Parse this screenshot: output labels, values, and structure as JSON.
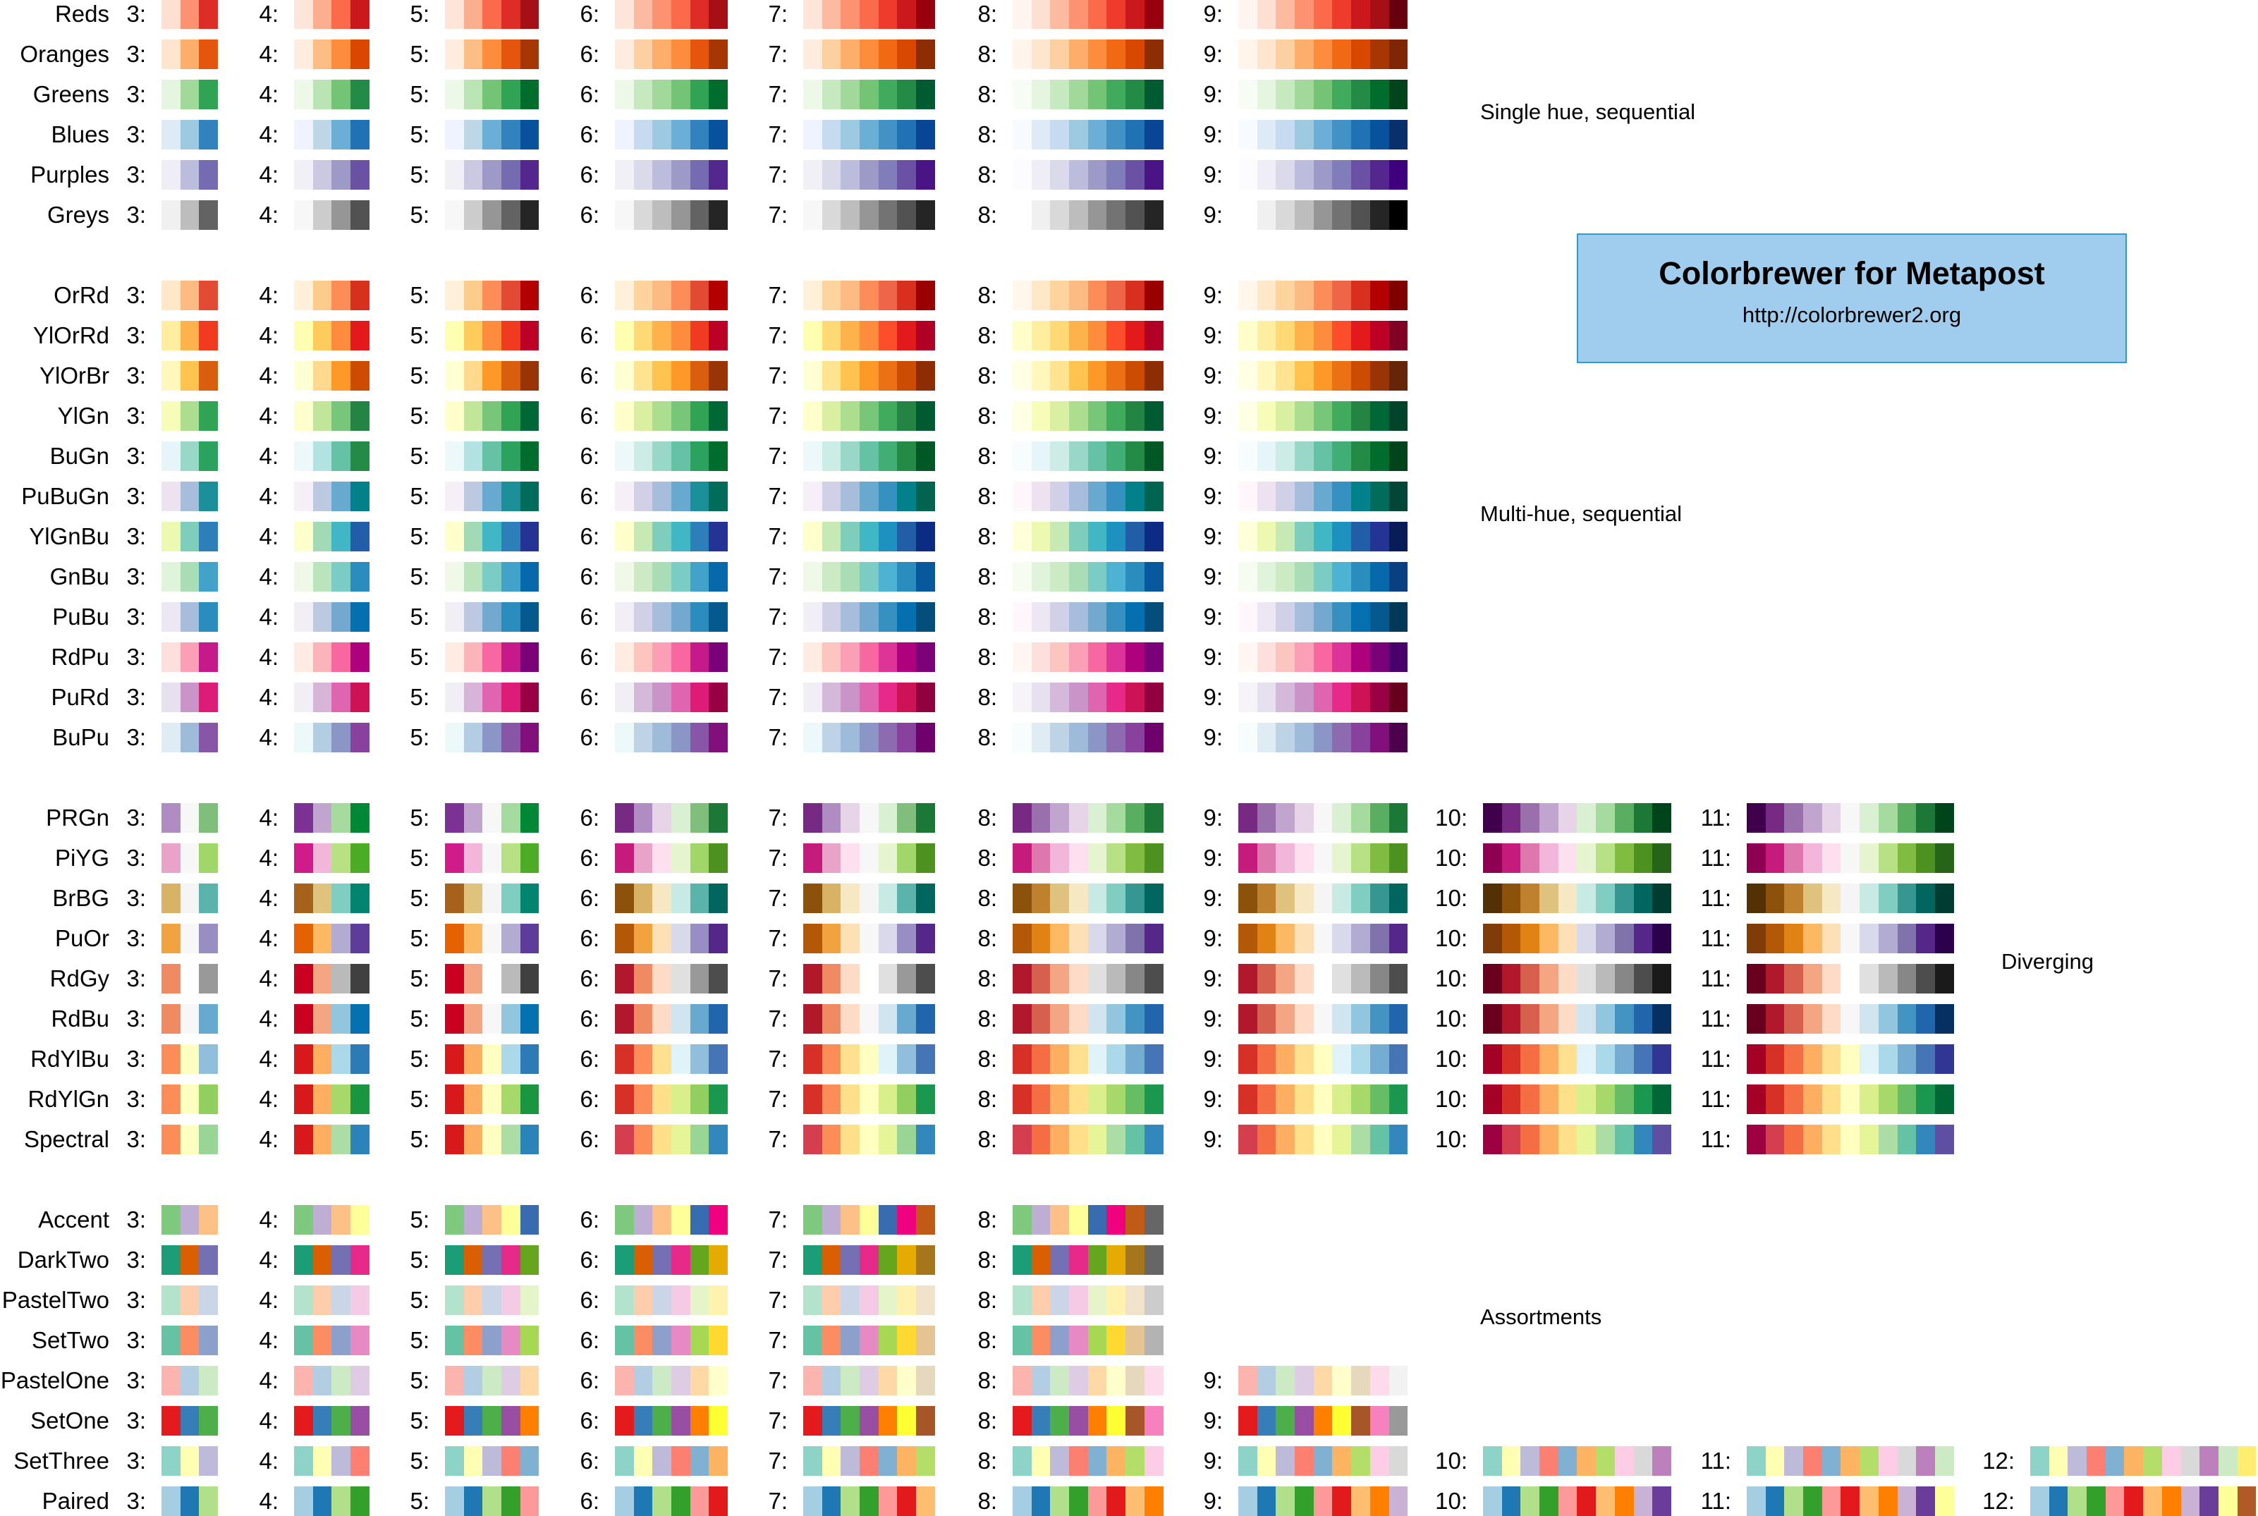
{
  "title_box": {
    "title": "Colorbrewer for Metapost",
    "url": "http://colorbrewer2.org",
    "fill": "#a0cdee",
    "border": "#2a9ad8"
  },
  "sections": {
    "single": "Single hue, sequential",
    "multi": "Multi-hue, sequential",
    "diverging": "Diverging",
    "assortments": "Assortments"
  },
  "groups": [
    {
      "id": "single",
      "palettes": [
        {
          "name": "Reds",
          "classes": {
            "3": "fee0d2 fc9272 de2d26",
            "4": "fee5d9 fcae91 fb6a4a cb181d",
            "5": "fee5d9 fcae91 fb6a4a de2d26 a50f15",
            "6": "fee5d9 fcbba1 fc9272 fb6a4a de2d26 a50f15",
            "7": "fee5d9 fcbba1 fc9272 fb6a4a ef3b2c cb181d 99000d",
            "8": "fff5f0 fee0d2 fcbba1 fc9272 fb6a4a ef3b2c cb181d 99000d",
            "9": "fff5f0 fee0d2 fcbba1 fc9272 fb6a4a ef3b2c cb181d a50f15 67000d"
          }
        },
        {
          "name": "Oranges",
          "classes": {
            "3": "fee6ce fdae6b e6550d",
            "4": "feedde fdbe85 fd8d3c d94701",
            "5": "feedde fdbe85 fd8d3c e6550d a63603",
            "6": "feedde fdd0a2 fdae6b fd8d3c e6550d a63603",
            "7": "feedde fdd0a2 fdae6b fd8d3c f16913 d94801 8c2d04",
            "8": "fff5eb fee6ce fdd0a2 fdae6b fd8d3c f16913 d94801 8c2d04",
            "9": "fff5eb fee6ce fdd0a2 fdae6b fd8d3c f16913 d94801 a63603 7f2704"
          }
        },
        {
          "name": "Greens",
          "classes": {
            "3": "e5f5e0 a1d99b 31a354",
            "4": "edf8e9 bae4b3 74c476 238b45",
            "5": "edf8e9 bae4b3 74c476 31a354 006d2c",
            "6": "edf8e9 c7e9c0 a1d99b 74c476 31a354 006d2c",
            "7": "edf8e9 c7e9c0 a1d99b 74c476 41ab5d 238b45 005a32",
            "8": "f7fcf5 e5f5e0 c7e9c0 a1d99b 74c476 41ab5d 238b45 005a32",
            "9": "f7fcf5 e5f5e0 c7e9c0 a1d99b 74c476 41ab5d 238b45 006d2c 00441b"
          }
        },
        {
          "name": "Blues",
          "classes": {
            "3": "deebf7 9ecae1 3182bd",
            "4": "eff3ff bdd7e7 6baed6 2171b5",
            "5": "eff3ff bdd7e7 6baed6 3182bd 08519c",
            "6": "eff3ff c6dbef 9ecae1 6baed6 3182bd 08519c",
            "7": "eff3ff c6dbef 9ecae1 6baed6 4292c6 2171b5 084594",
            "8": "f7fbff deebf7 c6dbef 9ecae1 6baed6 4292c6 2171b5 084594",
            "9": "f7fbff deebf7 c6dbef 9ecae1 6baed6 4292c6 2171b5 08519c 08306b"
          }
        },
        {
          "name": "Purples",
          "classes": {
            "3": "efedf5 bcbddc 756bb1",
            "4": "f2f0f7 cbc9e2 9e9ac8 6a51a3",
            "5": "f2f0f7 cbc9e2 9e9ac8 756bb1 54278f",
            "6": "f2f0f7 dadaeb bcbddc 9e9ac8 756bb1 54278f",
            "7": "f2f0f7 dadaeb bcbddc 9e9ac8 807dba 6a51a3 4a1486",
            "8": "fcfbfd efedf5 dadaeb bcbddc 9e9ac8 807dba 6a51a3 4a1486",
            "9": "fcfbfd efedf5 dadaeb bcbddc 9e9ac8 807dba 6a51a3 54278f 3f007d"
          }
        },
        {
          "name": "Greys",
          "classes": {
            "3": "f0f0f0 bdbdbd 636363",
            "4": "f7f7f7 cccccc 969696 525252",
            "5": "f7f7f7 cccccc 969696 636363 252525",
            "6": "f7f7f7 d9d9d9 bdbdbd 969696 636363 252525",
            "7": "f7f7f7 d9d9d9 bdbdbd 969696 737373 525252 252525",
            "8": "ffffff f0f0f0 d9d9d9 bdbdbd 969696 737373 525252 252525",
            "9": "ffffff f0f0f0 d9d9d9 bdbdbd 969696 737373 525252 252525 000000"
          }
        }
      ]
    },
    {
      "id": "multi",
      "palettes": [
        {
          "name": "OrRd",
          "classes": {
            "3": "fee8c8 fdbb84 e34a33",
            "4": "fef0d9 fdcc8a fc8d59 d7301f",
            "5": "fef0d9 fdcc8a fc8d59 e34a33 b30000",
            "6": "fef0d9 fdd49e fdbb84 fc8d59 e34a33 b30000",
            "7": "fef0d9 fdd49e fdbb84 fc8d59 ef6548 d7301f 990000",
            "8": "fff7ec fee8c8 fdd49e fdbb84 fc8d59 ef6548 d7301f 990000",
            "9": "fff7ec fee8c8 fdd49e fdbb84 fc8d59 ef6548 d7301f b30000 7f0000"
          }
        },
        {
          "name": "YlOrRd",
          "classes": {
            "3": "ffeda0 feb24c f03b20",
            "4": "ffffb2 fecc5c fd8d3c e31a1c",
            "5": "ffffb2 fecc5c fd8d3c f03b20 bd0026",
            "6": "ffffb2 fed976 feb24c fd8d3c f03b20 bd0026",
            "7": "ffffb2 fed976 feb24c fd8d3c fc4e2a e31a1c b10026",
            "8": "ffffcc ffeda0 fed976 feb24c fd8d3c fc4e2a e31a1c b10026",
            "9": "ffffcc ffeda0 fed976 feb24c fd8d3c fc4e2a e31a1c bd0026 800026"
          }
        },
        {
          "name": "YlOrBr",
          "classes": {
            "3": "fff7bc fec44f d95f0e",
            "4": "ffffd4 fed98e fe9929 cc4c02",
            "5": "ffffd4 fed98e fe9929 d95f0e 993404",
            "6": "ffffd4 fee391 fec44f fe9929 d95f0e 993404",
            "7": "ffffd4 fee391 fec44f fe9929 ec7014 cc4c02 8c2d04",
            "8": "ffffe5 fff7bc fee391 fec44f fe9929 ec7014 cc4c02 8c2d04",
            "9": "ffffe5 fff7bc fee391 fec44f fe9929 ec7014 cc4c02 993404 662506"
          }
        },
        {
          "name": "YlGn",
          "classes": {
            "3": "f7fcb9 addd8e 31a354",
            "4": "ffffcc c2e699 78c679 238443",
            "5": "ffffcc c2e699 78c679 31a354 006837",
            "6": "ffffcc d9f0a3 addd8e 78c679 31a354 006837",
            "7": "ffffcc d9f0a3 addd8e 78c679 41ab5d 238443 005a32",
            "8": "ffffe5 f7fcb9 d9f0a3 addd8e 78c679 41ab5d 238443 005a32",
            "9": "ffffe5 f7fcb9 d9f0a3 addd8e 78c679 41ab5d 238443 006837 004529"
          }
        },
        {
          "name": "BuGn",
          "classes": {
            "3": "e5f5f9 99d8c9 2ca25f",
            "4": "edf8fb b2e2e2 66c2a4 238b45",
            "5": "edf8fb b2e2e2 66c2a4 2ca25f 006d2c",
            "6": "edf8fb ccece6 99d8c9 66c2a4 2ca25f 006d2c",
            "7": "edf8fb ccece6 99d8c9 66c2a4 41ae76 238b45 005824",
            "8": "f7fcfd e5f5f9 ccece6 99d8c9 66c2a4 41ae76 238b45 005824",
            "9": "f7fcfd e5f5f9 ccece6 99d8c9 66c2a4 41ae76 238b45 006d2c 00441b"
          }
        },
        {
          "name": "PuBuGn",
          "classes": {
            "3": "ece2f0 a6bddb 1c9099",
            "4": "f6eff7 bdc9e1 67a9cf 02818a",
            "5": "f6eff7 bdc9e1 67a9cf 1c9099 016c59",
            "6": "f6eff7 d0d1e6 a6bddb 67a9cf 1c9099 016c59",
            "7": "f6eff7 d0d1e6 a6bddb 67a9cf 3690c0 02818a 016450",
            "8": "fff7fb ece2f0 d0d1e6 a6bddb 67a9cf 3690c0 02818a 016450",
            "9": "fff7fb ece2f0 d0d1e6 a6bddb 67a9cf 3690c0 02818a 016c59 014636"
          }
        },
        {
          "name": "YlGnBu",
          "classes": {
            "3": "edf8b1 7fcdbb 2c7fb8",
            "4": "ffffcc a1dab4 41b6c4 225ea8",
            "5": "ffffcc a1dab4 41b6c4 2c7fb8 253494",
            "6": "ffffcc c7e9b4 7fcdbb 41b6c4 2c7fb8 253494",
            "7": "ffffcc c7e9b4 7fcdbb 41b6c4 1d91c0 225ea8 0c2c84",
            "8": "ffffd9 edf8b1 c7e9b4 7fcdbb 41b6c4 1d91c0 225ea8 0c2c84",
            "9": "ffffd9 edf8b1 c7e9b4 7fcdbb 41b6c4 1d91c0 225ea8 253494 081d58"
          }
        },
        {
          "name": "GnBu",
          "classes": {
            "3": "e0f3db a8ddb5 43a2ca",
            "4": "f0f9e8 bae4bc 7bccc4 2b8cbe",
            "5": "f0f9e8 bae4bc 7bccc4 43a2ca 0868ac",
            "6": "f0f9e8 ccebc5 a8ddb5 7bccc4 43a2ca 0868ac",
            "7": "f0f9e8 ccebc5 a8ddb5 7bccc4 4eb3d3 2b8cbe 08589e",
            "8": "f7fcf0 e0f3db ccebc5 a8ddb5 7bccc4 4eb3d3 2b8cbe 08589e",
            "9": "f7fcf0 e0f3db ccebc5 a8ddb5 7bccc4 4eb3d3 2b8cbe 0868ac 084081"
          }
        },
        {
          "name": "PuBu",
          "classes": {
            "3": "ece7f2 a6bddb 2b8cbe",
            "4": "f1eef6 bdc9e1 74a9cf 0570b0",
            "5": "f1eef6 bdc9e1 74a9cf 2b8cbe 045a8d",
            "6": "f1eef6 d0d1e6 a6bddb 74a9cf 2b8cbe 045a8d",
            "7": "f1eef6 d0d1e6 a6bddb 74a9cf 3690c0 0570b0 034e7b",
            "8": "fff7fb ece7f2 d0d1e6 a6bddb 74a9cf 3690c0 0570b0 034e7b",
            "9": "fff7fb ece7f2 d0d1e6 a6bddb 74a9cf 3690c0 0570b0 045a8d 023858"
          }
        },
        {
          "name": "RdPu",
          "classes": {
            "3": "fde0dd fa9fb5 c51b8a",
            "4": "feebe2 fbb4b9 f768a1 ae017e",
            "5": "feebe2 fbb4b9 f768a1 c51b8a 7a0177",
            "6": "feebe2 fcc5c0 fa9fb5 f768a1 c51b8a 7a0177",
            "7": "feebe2 fcc5c0 fa9fb5 f768a1 dd3497 ae017e 7a0177",
            "8": "fff7f3 fde0dd fcc5c0 fa9fb5 f768a1 dd3497 ae017e 7a0177",
            "9": "fff7f3 fde0dd fcc5c0 fa9fb5 f768a1 dd3497 ae017e 7a0177 49006a"
          }
        },
        {
          "name": "PuRd",
          "classes": {
            "3": "e7e1ef c994c7 dd1c77",
            "4": "f1eef6 d7b5d8 df65b0 ce1256",
            "5": "f1eef6 d7b5d8 df65b0 dd1c77 980043",
            "6": "f1eef6 d4b9da c994c7 df65b0 dd1c77 980043",
            "7": "f1eef6 d4b9da c994c7 df65b0 e7298a ce1256 91003f",
            "8": "f7f4f9 e7e1ef d4b9da c994c7 df65b0 e7298a ce1256 91003f",
            "9": "f7f4f9 e7e1ef d4b9da c994c7 df65b0 e7298a ce1256 980043 67001f"
          }
        },
        {
          "name": "BuPu",
          "classes": {
            "3": "e0ecf4 9ebcda 8856a7",
            "4": "edf8fb b3cde3 8c96c6 88419d",
            "5": "edf8fb b3cde3 8c96c6 8856a7 810f7c",
            "6": "edf8fb bfd3e6 9ebcda 8c96c6 8856a7 810f7c",
            "7": "edf8fb bfd3e6 9ebcda 8c96c6 8c6bb1 88419d 6e016b",
            "8": "f7fcfd e0ecf4 bfd3e6 9ebcda 8c96c6 8c6bb1 88419d 6e016b",
            "9": "f7fcfd e0ecf4 bfd3e6 9ebcda 8c96c6 8c6bb1 88419d 810f7c 4d004b"
          }
        }
      ]
    },
    {
      "id": "diverging",
      "palettes": [
        {
          "name": "PRGn",
          "classes": {
            "3": "af8dc3 f7f7f7 7fbf7b",
            "4": "7b3294 c2a5cf a6dba0 008837",
            "5": "7b3294 c2a5cf f7f7f7 a6dba0 008837",
            "6": "762a83 af8dc3 e7d4e8 d9f0d3 7fbf7b 1b7837",
            "7": "762a83 af8dc3 e7d4e8 f7f7f7 d9f0d3 7fbf7b 1b7837",
            "8": "762a83 9970ab c2a5cf e7d4e8 d9f0d3 a6dba0 5aae61 1b7837",
            "9": "762a83 9970ab c2a5cf e7d4e8 f7f7f7 d9f0d3 a6dba0 5aae61 1b7837",
            "10": "40004b 762a83 9970ab c2a5cf e7d4e8 d9f0d3 a6dba0 5aae61 1b7837 00441b",
            "11": "40004b 762a83 9970ab c2a5cf e7d4e8 f7f7f7 d9f0d3 a6dba0 5aae61 1b7837 00441b"
          }
        },
        {
          "name": "PiYG",
          "classes": {
            "3": "e9a3c9 f7f7f7 a1d76a",
            "4": "d01c8b f1b6da b8e186 4dac26",
            "5": "d01c8b f1b6da f7f7f7 b8e186 4dac26",
            "6": "c51b7d e9a3c9 fde0ef e6f5d0 a1d76a 4d9221",
            "7": "c51b7d e9a3c9 fde0ef f7f7f7 e6f5d0 a1d76a 4d9221",
            "8": "c51b7d de77ae f1b6da fde0ef e6f5d0 b8e186 7fbc41 4d9221",
            "9": "c51b7d de77ae f1b6da fde0ef f7f7f7 e6f5d0 b8e186 7fbc41 4d9221",
            "10": "8e0152 c51b7d de77ae f1b6da fde0ef e6f5d0 b8e186 7fbc41 4d9221 276419",
            "11": "8e0152 c51b7d de77ae f1b6da fde0ef f7f7f7 e6f5d0 b8e186 7fbc41 4d9221 276419"
          }
        },
        {
          "name": "BrBG",
          "classes": {
            "3": "d8b365 f5f5f5 5ab4ac",
            "4": "a6611a dfc27d 80cdc1 018571",
            "5": "a6611a dfc27d f5f5f5 80cdc1 018571",
            "6": "8c510a d8b365 f6e8c3 c7eae5 5ab4ac 01665e",
            "7": "8c510a d8b365 f6e8c3 f5f5f5 c7eae5 5ab4ac 01665e",
            "8": "8c510a bf812d dfc27d f6e8c3 c7eae5 80cdc1 35978f 01665e",
            "9": "8c510a bf812d dfc27d f6e8c3 f5f5f5 c7eae5 80cdc1 35978f 01665e",
            "10": "543005 8c510a bf812d dfc27d f6e8c3 c7eae5 80cdc1 35978f 01665e 003c30",
            "11": "543005 8c510a bf812d dfc27d f6e8c3 f5f5f5 c7eae5 80cdc1 35978f 01665e 003c30"
          }
        },
        {
          "name": "PuOr",
          "classes": {
            "3": "f1a340 f7f7f7 998ec3",
            "4": "e66101 fdb863 b2abd2 5e3c99",
            "5": "e66101 fdb863 f7f7f7 b2abd2 5e3c99",
            "6": "b35806 f1a340 fee0b6 d8daeb 998ec3 542788",
            "7": "b35806 f1a340 fee0b6 f7f7f7 d8daeb 998ec3 542788",
            "8": "b35806 e08214 fdb863 fee0b6 d8daeb b2abd2 8073ac 542788",
            "9": "b35806 e08214 fdb863 fee0b6 f7f7f7 d8daeb b2abd2 8073ac 542788",
            "10": "7f3b08 b35806 e08214 fdb863 fee0b6 d8daeb b2abd2 8073ac 542788 2d004b",
            "11": "7f3b08 b35806 e08214 fdb863 fee0b6 f7f7f7 d8daeb b2abd2 8073ac 542788 2d004b"
          }
        },
        {
          "name": "RdGy",
          "classes": {
            "3": "ef8a62 ffffff 999999",
            "4": "ca0020 f4a582 bababa 404040",
            "5": "ca0020 f4a582 ffffff bababa 404040",
            "6": "b2182b ef8a62 fddbc7 e0e0e0 999999 4d4d4d",
            "7": "b2182b ef8a62 fddbc7 ffffff e0e0e0 999999 4d4d4d",
            "8": "b2182b d6604d f4a582 fddbc7 e0e0e0 bababa 878787 4d4d4d",
            "9": "b2182b d6604d f4a582 fddbc7 ffffff e0e0e0 bababa 878787 4d4d4d",
            "10": "67001f b2182b d6604d f4a582 fddbc7 e0e0e0 bababa 878787 4d4d4d 1a1a1a",
            "11": "67001f b2182b d6604d f4a582 fddbc7 ffffff e0e0e0 bababa 878787 4d4d4d 1a1a1a"
          }
        },
        {
          "name": "RdBu",
          "classes": {
            "3": "ef8a62 f7f7f7 67a9cf",
            "4": "ca0020 f4a582 92c5de 0571b0",
            "5": "ca0020 f4a582 f7f7f7 92c5de 0571b0",
            "6": "b2182b ef8a62 fddbc7 d1e5f0 67a9cf 2166ac",
            "7": "b2182b ef8a62 fddbc7 f7f7f7 d1e5f0 67a9cf 2166ac",
            "8": "b2182b d6604d f4a582 fddbc7 d1e5f0 92c5de 4393c3 2166ac",
            "9": "b2182b d6604d f4a582 fddbc7 f7f7f7 d1e5f0 92c5de 4393c3 2166ac",
            "10": "67001f b2182b d6604d f4a582 fddbc7 d1e5f0 92c5de 4393c3 2166ac 053061",
            "11": "67001f b2182b d6604d f4a582 fddbc7 f7f7f7 d1e5f0 92c5de 4393c3 2166ac 053061"
          }
        },
        {
          "name": "RdYlBu",
          "classes": {
            "3": "fc8d59 ffffbf 91bfdb",
            "4": "d7191c fdae61 abd9e9 2c7bb6",
            "5": "d7191c fdae61 ffffbf abd9e9 2c7bb6",
            "6": "d73027 fc8d59 fee090 e0f3f8 91bfdb 4575b4",
            "7": "d73027 fc8d59 fee090 ffffbf e0f3f8 91bfdb 4575b4",
            "8": "d73027 f46d43 fdae61 fee090 e0f3f8 abd9e9 74add1 4575b4",
            "9": "d73027 f46d43 fdae61 fee090 ffffbf e0f3f8 abd9e9 74add1 4575b4",
            "10": "a50026 d73027 f46d43 fdae61 fee090 e0f3f8 abd9e9 74add1 4575b4 313695",
            "11": "a50026 d73027 f46d43 fdae61 fee090 ffffbf e0f3f8 abd9e9 74add1 4575b4 313695"
          }
        },
        {
          "name": "RdYlGn",
          "classes": {
            "3": "fc8d59 ffffbf 91cf60",
            "4": "d7191c fdae61 a6d96a 1a9641",
            "5": "d7191c fdae61 ffffbf a6d96a 1a9641",
            "6": "d73027 fc8d59 fee08b d9ef8b 91cf60 1a9850",
            "7": "d73027 fc8d59 fee08b ffffbf d9ef8b 91cf60 1a9850",
            "8": "d73027 f46d43 fdae61 fee08b d9ef8b a6d96a 66bd63 1a9850",
            "9": "d73027 f46d43 fdae61 fee08b ffffbf d9ef8b a6d96a 66bd63 1a9850",
            "10": "a50026 d73027 f46d43 fdae61 fee08b d9ef8b a6d96a 66bd63 1a9850 006837",
            "11": "a50026 d73027 f46d43 fdae61 fee08b ffffbf d9ef8b a6d96a 66bd63 1a9850 006837"
          }
        },
        {
          "name": "Spectral",
          "classes": {
            "3": "fc8d59 ffffbf 99d594",
            "4": "d7191c fdae61 abdda4 2b83ba",
            "5": "d7191c fdae61 ffffbf abdda4 2b83ba",
            "6": "d53e4f fc8d59 fee08b e6f598 99d594 3288bd",
            "7": "d53e4f fc8d59 fee08b ffffbf e6f598 99d594 3288bd",
            "8": "d53e4f f46d43 fdae61 fee08b e6f598 abdda4 66c2a5 3288bd",
            "9": "d53e4f f46d43 fdae61 fee08b ffffbf e6f598 abdda4 66c2a5 3288bd",
            "10": "9e0142 d53e4f f46d43 fdae61 fee08b e6f598 abdda4 66c2a5 3288bd 5e4fa2",
            "11": "9e0142 d53e4f f46d43 fdae61 fee08b ffffbf e6f598 abdda4 66c2a5 3288bd 5e4fa2"
          }
        }
      ]
    },
    {
      "id": "assortments",
      "palettes": [
        {
          "name": "Accent",
          "counts": [
            3,
            4,
            5,
            6,
            7,
            8
          ],
          "colors": "7fc97f beaed4 fdc086 ffff99 386cb0 f0027f bf5b17 666666"
        },
        {
          "name": "DarkTwo",
          "counts": [
            3,
            4,
            5,
            6,
            7,
            8
          ],
          "colors": "1b9e77 d95f02 7570b3 e7298a 66a61e e6ab02 a6761d 666666"
        },
        {
          "name": "PastelTwo",
          "counts": [
            3,
            4,
            5,
            6,
            7,
            8
          ],
          "colors": "b3e2cd fdcdac cbd5e8 f4cae4 e6f5c9 fff2ae f1e2cc cccccc"
        },
        {
          "name": "SetTwo",
          "counts": [
            3,
            4,
            5,
            6,
            7,
            8
          ],
          "colors": "66c2a5 fc8d62 8da0cb e78ac3 a6d854 ffd92f e5c494 b3b3b3"
        },
        {
          "name": "PastelOne",
          "counts": [
            3,
            4,
            5,
            6,
            7,
            8,
            9
          ],
          "colors": "fbb4ae b3cde3 ccebc5 decbe4 fed9a6 ffffcc e5d8bd fddaec f2f2f2"
        },
        {
          "name": "SetOne",
          "counts": [
            3,
            4,
            5,
            6,
            7,
            8,
            9
          ],
          "colors": "e41a1c 377eb8 4daf4a 984ea3 ff7f00 ffff33 a65628 f781bf 999999"
        },
        {
          "name": "SetThree",
          "counts": [
            3,
            4,
            5,
            6,
            7,
            8,
            9,
            10,
            11,
            12
          ],
          "colors": "8dd3c7 ffffb3 bebada fb8072 80b1d3 fdb462 b3de69 fccde5 d9d9d9 bc80bd ccebc5 ffed6f"
        },
        {
          "name": "Paired",
          "counts": [
            3,
            4,
            5,
            6,
            7,
            8,
            9,
            10,
            11,
            12
          ],
          "colors": "a6cee3 1f78b4 b2df8a 33a02c fb9a99 e31a1c fdbf6f ff7f00 cab2d6 6a3d9a ffff99 b15928"
        }
      ]
    }
  ]
}
